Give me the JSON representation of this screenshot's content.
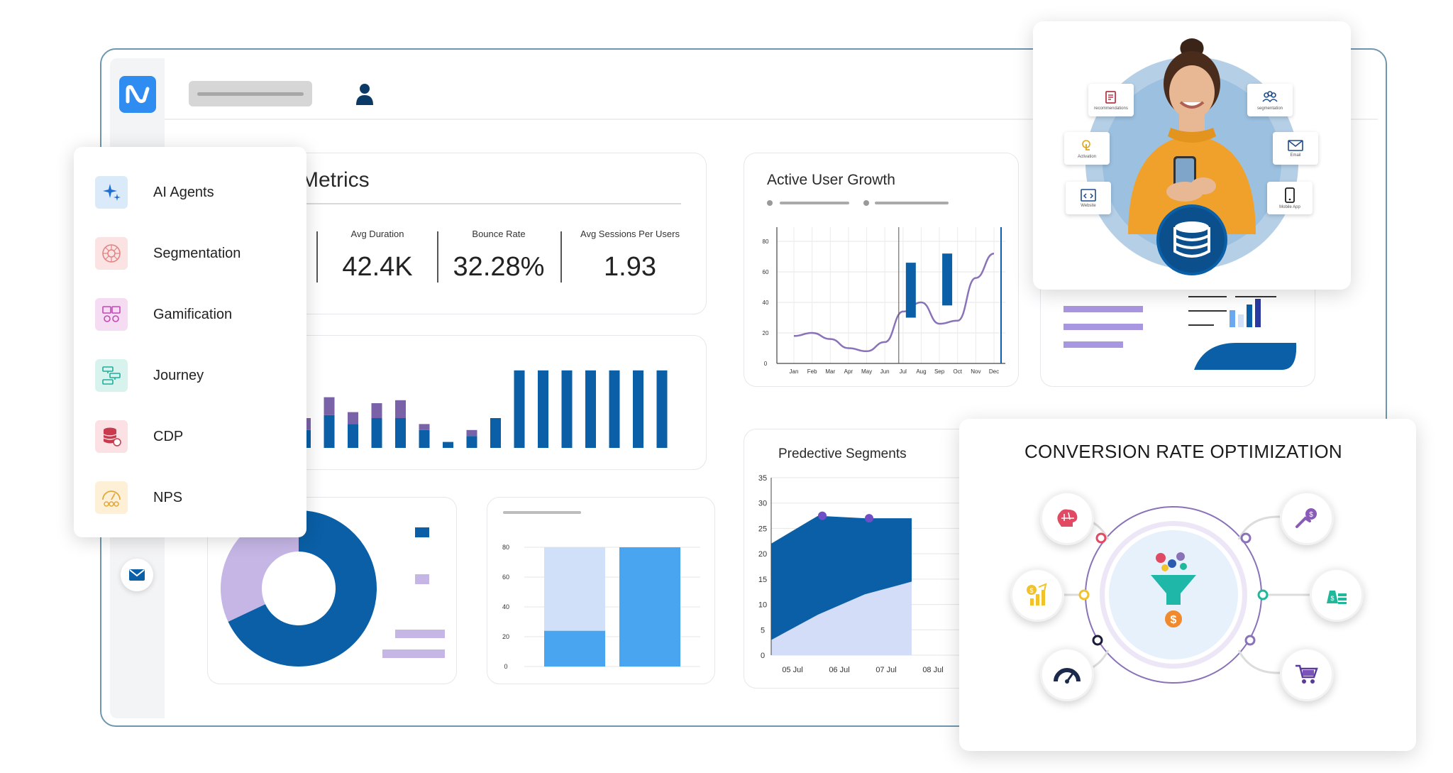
{
  "menu": {
    "items": [
      {
        "label": "AI Agents",
        "icon": "sparkle-icon"
      },
      {
        "label": "Segmentation",
        "icon": "segmentation-icon"
      },
      {
        "label": "Gamification",
        "icon": "gamification-icon"
      },
      {
        "label": "Journey",
        "icon": "journey-icon"
      },
      {
        "label": "CDP",
        "icon": "database-icon"
      },
      {
        "label": "NPS",
        "icon": "nps-icon"
      }
    ]
  },
  "metrics": {
    "title": "Metrics",
    "items": [
      {
        "label": "Avg Duration",
        "value": "42.4K"
      },
      {
        "label": "Bounce Rate",
        "value": "32.28%"
      },
      {
        "label": "Avg Sessions Per Users",
        "value": "1.93"
      }
    ]
  },
  "bar_panel": {
    "chart_data": {
      "type": "bar",
      "series": [
        {
          "values": [
            12,
            22,
            16,
            20,
            20,
            12,
            4,
            8,
            20,
            52,
            52,
            52,
            52,
            52,
            52,
            52
          ]
        },
        {
          "values": [
            8,
            12,
            8,
            10,
            12,
            4,
            0,
            4,
            0,
            0,
            0,
            0,
            0,
            0,
            0,
            0
          ]
        }
      ],
      "colors": [
        "#0a5fa6",
        "#7a62a8"
      ]
    }
  },
  "active_user_growth": {
    "title": "Active User Growth",
    "chart_data": {
      "type": "line",
      "title": "Active User Growth",
      "categories": [
        "Jan",
        "Feb",
        "Mar",
        "Apr",
        "May",
        "Jun",
        "Jul",
        "Aug",
        "Sep",
        "Oct",
        "Nov",
        "Dec"
      ],
      "y_ticks": [
        "80",
        "60",
        "40",
        "20",
        "0"
      ],
      "ylim": [
        0,
        80
      ],
      "series": [
        {
          "values": [
            18,
            20,
            16,
            10,
            8,
            14,
            34,
            40,
            26,
            28,
            56,
            72
          ],
          "color": "#8a72b8"
        }
      ],
      "bars": [
        {
          "x": "Jul",
          "low": 30,
          "high": 66
        },
        {
          "x": "Sep",
          "low": 38,
          "high": 72
        }
      ]
    }
  },
  "predictive_segments": {
    "title": "Predective Segments",
    "chart_data": {
      "type": "area",
      "title": "Predective Segments",
      "categories": [
        "05 Jul",
        "06 Jul",
        "07 Jul",
        "08 Jul"
      ],
      "y_ticks": [
        "35",
        "30",
        "25",
        "20",
        "15",
        "10",
        "5",
        "0"
      ],
      "ylim": [
        0,
        35
      ],
      "series": [
        {
          "values": [
            22,
            27.5,
            27,
            27
          ],
          "color": "#0a5fa6"
        },
        {
          "values": [
            3,
            8,
            12,
            14.5
          ],
          "color": "#d4ddf8"
        }
      ]
    }
  },
  "stacked_chart": {
    "chart_data": {
      "type": "bar",
      "y_ticks": [
        "80",
        "60",
        "40",
        "20",
        "0"
      ],
      "ylim": [
        0,
        80
      ],
      "series": [
        {
          "values": [
            24,
            80
          ],
          "color": "#4aa5f0"
        },
        {
          "values": [
            56,
            0
          ],
          "color": "#cfe0f8"
        }
      ]
    }
  },
  "donut": {
    "chart_data": {
      "type": "pie",
      "values": [
        68,
        32
      ],
      "colors": [
        "#0a5fa6",
        "#c6b6e6"
      ]
    }
  },
  "hero": {
    "tags": [
      {
        "label": "recommendations",
        "icon": "document-icon"
      },
      {
        "label": "segmentation",
        "icon": "users-icon"
      },
      {
        "label": "Activation",
        "icon": "touch-icon"
      },
      {
        "label": "Email",
        "icon": "mail-icon"
      },
      {
        "label": "Website",
        "icon": "code-icon"
      },
      {
        "label": "Mobile App",
        "icon": "phone-icon"
      }
    ]
  },
  "cro": {
    "title": "CONVERSION RATE OPTIMIZATION",
    "nodes": [
      {
        "icon": "brain-icon"
      },
      {
        "icon": "money-hand-icon"
      },
      {
        "icon": "growth-chart-icon"
      },
      {
        "icon": "money-bag-icon"
      },
      {
        "icon": "speedometer-icon"
      },
      {
        "icon": "cart-icon"
      }
    ],
    "center_icon": "funnel-icon"
  }
}
